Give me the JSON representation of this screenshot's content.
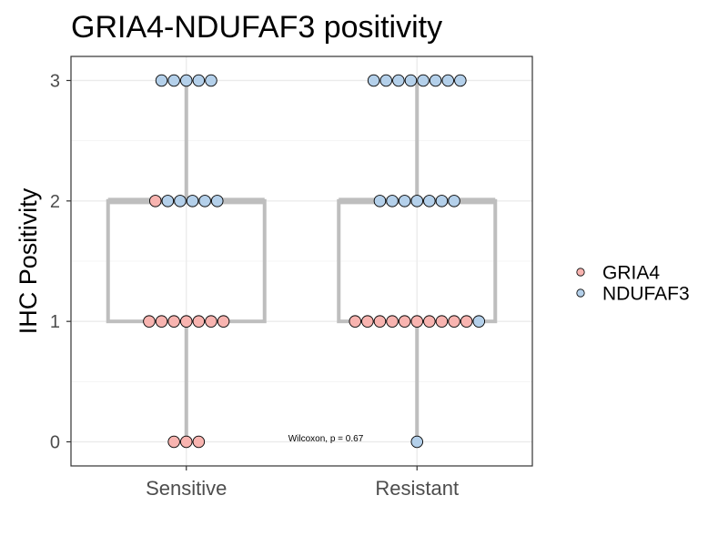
{
  "chart_data": {
    "type": "boxplot-dotplot",
    "title": "GRIA4-NDUFAF3 positivity",
    "xlabel": "",
    "ylabel": "IHC Positivity",
    "categories": [
      "Sensitive",
      "Resistant"
    ],
    "ylim": [
      -0.2,
      3.2
    ],
    "yticks": [
      0,
      1,
      2,
      3
    ],
    "boxes": [
      {
        "category": "Sensitive",
        "min": 0,
        "q1": 1,
        "median": 2,
        "q3": 2,
        "max": 3
      },
      {
        "category": "Resistant",
        "min": 0,
        "q1": 1,
        "median": 2,
        "q3": 2,
        "max": 3
      }
    ],
    "series": [
      {
        "name": "GRIA4",
        "color": "#f8b4b0",
        "counts": {
          "Sensitive": {
            "0": 3,
            "1": 7,
            "2": 1,
            "3": 0
          },
          "Resistant": {
            "0": 0,
            "1": 10,
            "2": 0,
            "3": 0
          }
        }
      },
      {
        "name": "NDUFAF3",
        "color": "#b4d0ea",
        "counts": {
          "Sensitive": {
            "0": 0,
            "1": 0,
            "2": 5,
            "3": 5
          },
          "Resistant": {
            "0": 1,
            "1": 1,
            "2": 7,
            "3": 8
          }
        }
      }
    ],
    "legend_position": "right",
    "annotation": "Wilcoxon, p = 0.67",
    "grid": true
  }
}
